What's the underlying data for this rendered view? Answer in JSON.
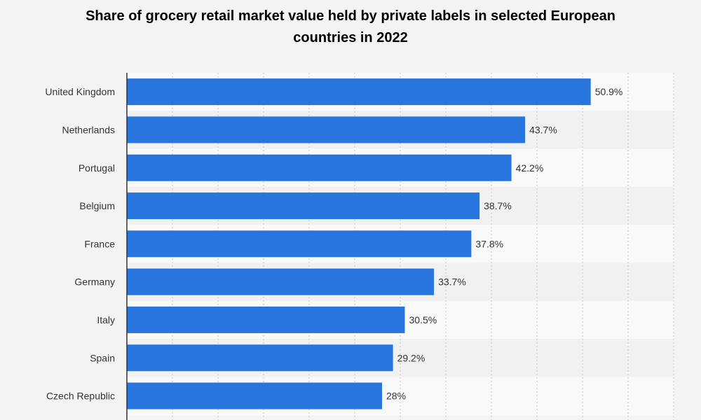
{
  "chart_data": {
    "type": "bar",
    "orientation": "horizontal",
    "title": "Share of grocery retail market value held by private labels in selected European countries in 2022",
    "categories": [
      "United Kingdom",
      "Netherlands",
      "Portugal",
      "Belgium",
      "France",
      "Germany",
      "Italy",
      "Spain",
      "Czech Republic"
    ],
    "values": [
      50.9,
      43.7,
      42.2,
      38.7,
      37.8,
      33.7,
      30.5,
      29.2,
      28
    ],
    "value_labels": [
      "50.9%",
      "43.7%",
      "42.2%",
      "38.7%",
      "37.8%",
      "33.7%",
      "30.5%",
      "29.2%",
      "28%"
    ],
    "xlim": [
      0,
      60
    ],
    "grid": true,
    "bar_color": "#2876dd"
  }
}
